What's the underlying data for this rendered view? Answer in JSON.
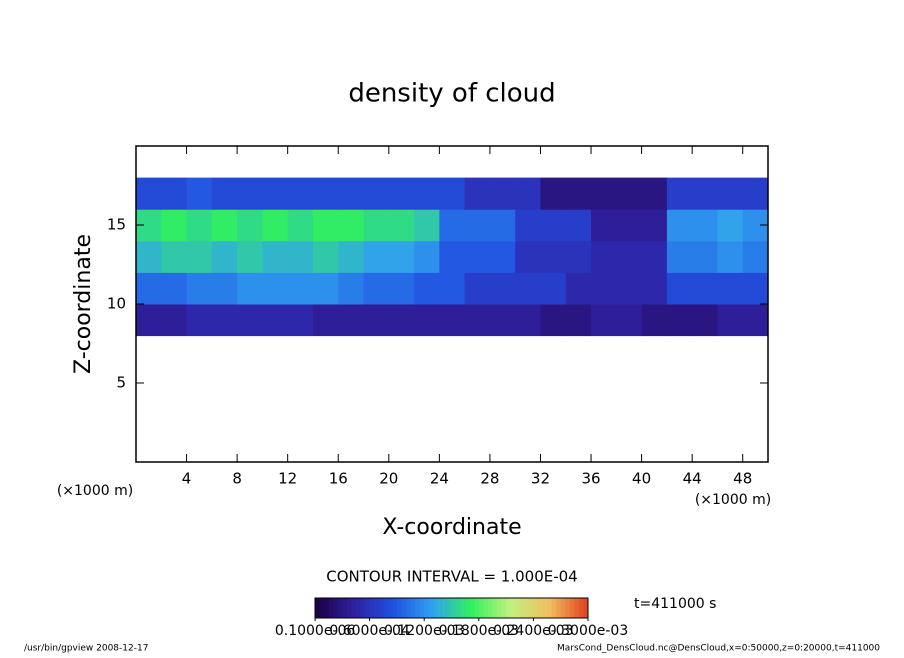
{
  "chart_data": {
    "type": "heatmap",
    "title": "density of cloud",
    "x_label": "X-coordinate",
    "y_label": "Z-coordinate",
    "x_unit_label": "(×1000 m)",
    "y_unit_label": "(×1000 m)",
    "contour_label": "CONTOUR INTERVAL = 1.000E-04",
    "time_label": "t=411000 s",
    "footer_left": "/usr/bin/gpview  2008-12-17",
    "footer_right": "MarsCond_DensCloud.nc@DensCloud,x=0:50000,z=0:20000,t=411000",
    "xlim": [
      0,
      50
    ],
    "ylim": [
      0,
      20
    ],
    "xticks": [
      4,
      8,
      12,
      16,
      20,
      24,
      28,
      32,
      36,
      40,
      44,
      48
    ],
    "yticks": [
      5,
      10,
      15
    ],
    "x_edges": [
      0,
      2,
      4,
      6,
      8,
      10,
      12,
      14,
      16,
      18,
      20,
      22,
      24,
      26,
      28,
      30,
      32,
      34,
      36,
      38,
      40,
      42,
      44,
      46,
      48,
      50
    ],
    "z_edges": [
      8,
      10,
      12,
      14,
      16,
      18
    ],
    "values": [
      [
        4e-05,
        4e-05,
        5e-05,
        5e-05,
        5e-05,
        5e-05,
        5e-05,
        4e-05,
        4e-05,
        4e-05,
        4e-05,
        4e-05,
        4e-05,
        4e-05,
        4e-05,
        4e-05,
        3e-05,
        3e-05,
        4e-05,
        4e-05,
        3e-05,
        3e-05,
        3e-05,
        4e-05,
        4e-05
      ],
      [
        0.0001,
        0.0001,
        0.00011,
        0.00011,
        0.00012,
        0.00012,
        0.00012,
        0.00012,
        0.00011,
        0.0001,
        0.0001,
        9e-05,
        9e-05,
        7e-05,
        7e-05,
        7e-05,
        7e-05,
        5e-05,
        5e-05,
        5e-05,
        5e-05,
        8e-05,
        8e-05,
        8e-05,
        8e-05
      ],
      [
        0.00014,
        0.00015,
        0.00015,
        0.00014,
        0.00015,
        0.00014,
        0.00014,
        0.00015,
        0.00014,
        0.00013,
        0.00013,
        0.00012,
        9e-05,
        9e-05,
        9e-05,
        6e-05,
        6e-05,
        6e-05,
        5e-05,
        5e-05,
        5e-05,
        0.00011,
        0.00011,
        0.00012,
        0.00011
      ],
      [
        0.00016,
        0.00017,
        0.00016,
        0.00017,
        0.00016,
        0.00017,
        0.00016,
        0.00017,
        0.00017,
        0.00016,
        0.00016,
        0.00015,
        0.0001,
        0.0001,
        0.0001,
        7e-05,
        7e-05,
        7e-05,
        4e-05,
        4e-05,
        4e-05,
        0.00012,
        0.00012,
        0.00013,
        0.00012
      ],
      [
        8e-05,
        8e-05,
        9e-05,
        8e-05,
        8e-05,
        8e-05,
        8e-05,
        8e-05,
        8e-05,
        8e-05,
        8e-05,
        8e-05,
        8e-05,
        6e-05,
        6e-05,
        6e-05,
        3e-05,
        3e-05,
        3e-05,
        3e-05,
        3e-05,
        7e-05,
        7e-05,
        7e-05,
        7e-05
      ]
    ],
    "clim": [
      0,
      0.0003
    ],
    "colormap": [
      "#1a0040",
      "#3020a0",
      "#2050e0",
      "#30a0f0",
      "#30f060",
      "#c0f080",
      "#f0c060",
      "#e04020"
    ],
    "colorbar_ticks": [
      {
        "value": 1e-07,
        "label": "0.1000e-06"
      },
      {
        "value": 6e-05,
        "label": "0.6000e-04"
      },
      {
        "value": 0.00012,
        "label": "0.1200e-03"
      },
      {
        "value": 0.00018,
        "label": "0.1800e-03"
      },
      {
        "value": 0.00024,
        "label": "0.2400e-03"
      },
      {
        "value": 0.0003,
        "label": "0.3000e-03"
      }
    ]
  }
}
